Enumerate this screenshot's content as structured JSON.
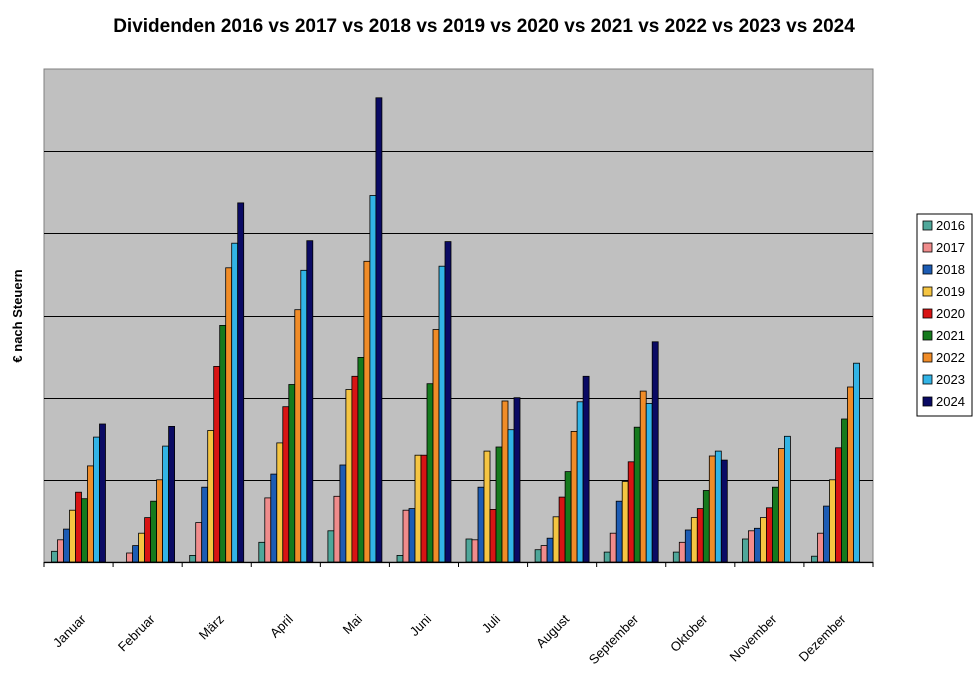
{
  "chart_data": {
    "type": "bar",
    "title": "Dividenden 2016 vs 2017 vs 2018 vs 2019 vs 2020 vs 2021 vs 2022 vs 2023 vs 2024",
    "xlabel": "",
    "ylabel": "€ nach Steuern",
    "ylim": [
      0,
      600
    ],
    "ytick_step": 100,
    "y_tick_labels_shown": false,
    "grid": true,
    "plot_background": "#c0c0c0",
    "legend_position": "right",
    "categories": [
      "Januar",
      "Februar",
      "März",
      "April",
      "Mai",
      "Juni",
      "Juli",
      "August",
      "September",
      "Oktober",
      "November",
      "Dezember"
    ],
    "series": [
      {
        "name": "2016",
        "color": "#4fa79a",
        "values": [
          13,
          0,
          8,
          24,
          38,
          8,
          28,
          15,
          12,
          12,
          28,
          7
        ]
      },
      {
        "name": "2017",
        "color": "#f08c8c",
        "values": [
          27,
          11,
          48,
          78,
          80,
          63,
          27,
          20,
          35,
          24,
          38,
          35
        ]
      },
      {
        "name": "2018",
        "color": "#1c5cb4",
        "values": [
          40,
          20,
          91,
          107,
          118,
          65,
          91,
          29,
          74,
          39,
          41,
          68
        ]
      },
      {
        "name": "2019",
        "color": "#f5c542",
        "values": [
          63,
          35,
          160,
          145,
          210,
          130,
          135,
          55,
          98,
          54,
          54,
          100
        ]
      },
      {
        "name": "2020",
        "color": "#d81414",
        "values": [
          85,
          54,
          238,
          189,
          226,
          130,
          64,
          79,
          122,
          65,
          66,
          139
        ]
      },
      {
        "name": "2021",
        "color": "#157a1d",
        "values": [
          77,
          74,
          288,
          216,
          249,
          217,
          140,
          110,
          164,
          87,
          91,
          174
        ]
      },
      {
        "name": "2022",
        "color": "#f08c28",
        "values": [
          117,
          100,
          358,
          307,
          366,
          283,
          196,
          159,
          208,
          129,
          138,
          213
        ]
      },
      {
        "name": "2023",
        "color": "#32b4e6",
        "values": [
          152,
          141,
          388,
          355,
          446,
          360,
          161,
          195,
          193,
          135,
          153,
          242
        ]
      },
      {
        "name": "2024",
        "color": "#0a0a64",
        "values": [
          168,
          165,
          437,
          391,
          565,
          390,
          200,
          226,
          268,
          124,
          0,
          0
        ]
      }
    ]
  }
}
